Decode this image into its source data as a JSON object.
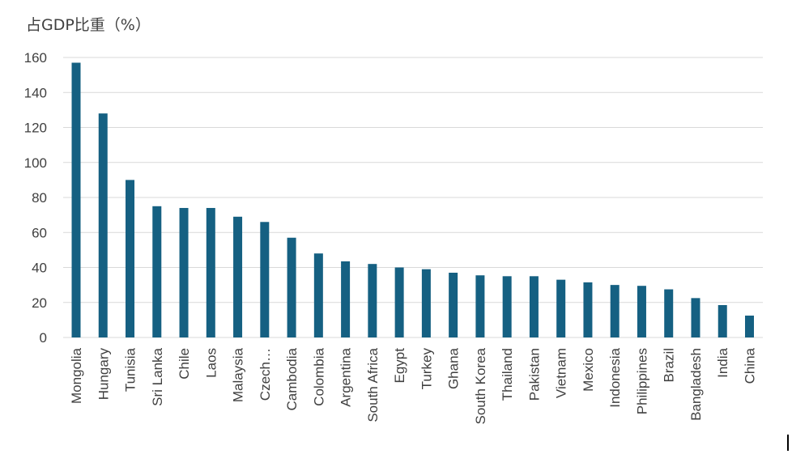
{
  "chart_data": {
    "type": "bar",
    "title": "占GDP比重（%）",
    "xlabel": "",
    "ylabel": "",
    "ylim": [
      0,
      160
    ],
    "yticks": [
      0,
      20,
      40,
      60,
      80,
      100,
      120,
      140,
      160
    ],
    "grid": true,
    "bar_color": "#156082",
    "categories": [
      "Mongolia",
      "Hungary",
      "Tunisia",
      "Sri Lanka",
      "Chile",
      "Laos",
      "Malaysia",
      "Czech…",
      "Cambodia",
      "Colombia",
      "Argentina",
      "South Africa",
      "Egypt",
      "Turkey",
      "Ghana",
      "South Korea",
      "Thailand",
      "Pakistan",
      "Vietnam",
      "Mexico",
      "Indonesia",
      "Philippines",
      "Brazil",
      "Bangladesh",
      "India",
      "China"
    ],
    "values": [
      157,
      128,
      90,
      75,
      74,
      74,
      69,
      66,
      57,
      48,
      43.5,
      42,
      40,
      39,
      37,
      35.5,
      35,
      35,
      33,
      31.5,
      30,
      29.5,
      27.5,
      22.5,
      18.5,
      12.5
    ]
  }
}
